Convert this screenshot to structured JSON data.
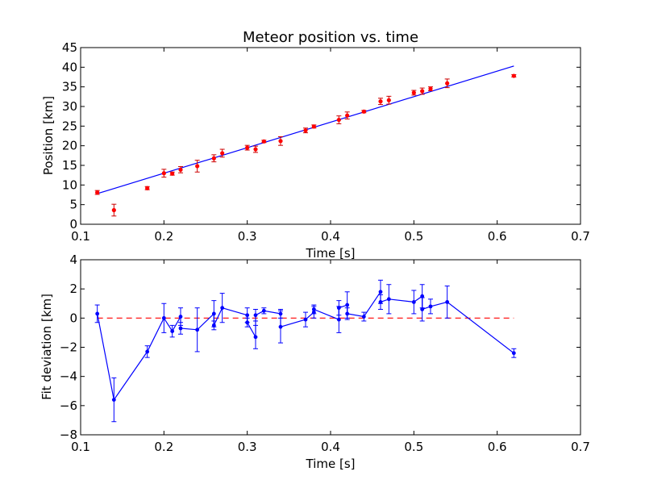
{
  "chart_data": [
    {
      "type": "scatter",
      "title": "Meteor position vs. time",
      "xlabel": "Time [s]",
      "ylabel": "Position [km]",
      "xlim": [
        0.1,
        0.7
      ],
      "ylim": [
        0,
        45
      ],
      "xticks": [
        "0.1",
        "0.2",
        "0.3",
        "0.4",
        "0.5",
        "0.6",
        "0.7"
      ],
      "yticks": [
        "0",
        "5",
        "10",
        "15",
        "20",
        "25",
        "30",
        "35",
        "40",
        "45"
      ],
      "grid": false,
      "colors": {
        "points": "#ff0000",
        "errorbars": "#cc0000",
        "fit": "#0000ff"
      },
      "series": [
        {
          "kind": "points_with_errorbars",
          "x": [
            0.12,
            0.14,
            0.18,
            0.2,
            0.21,
            0.22,
            0.24,
            0.26,
            0.27,
            0.3,
            0.31,
            0.32,
            0.34,
            0.37,
            0.38,
            0.41,
            0.42,
            0.44,
            0.46,
            0.47,
            0.5,
            0.51,
            0.52,
            0.54,
            0.62
          ],
          "y": [
            8.1,
            3.6,
            9.2,
            13.0,
            12.9,
            13.9,
            14.8,
            16.8,
            18.1,
            19.5,
            19.1,
            21.1,
            21.2,
            23.9,
            24.9,
            26.6,
            27.7,
            28.7,
            31.3,
            31.6,
            33.5,
            33.9,
            34.5,
            35.9,
            37.8
          ],
          "err": [
            0.5,
            1.5,
            0.4,
            1.0,
            0.4,
            0.8,
            1.5,
            0.9,
            1.0,
            0.6,
            0.8,
            0.3,
            1.1,
            0.6,
            0.4,
            1.0,
            0.9,
            0.3,
            0.8,
            1.0,
            0.6,
            0.8,
            0.5,
            1.1,
            0.3
          ]
        },
        {
          "kind": "line",
          "x": [
            0.12,
            0.62
          ],
          "y": [
            7.8,
            40.3
          ]
        }
      ]
    },
    {
      "type": "line",
      "title": "",
      "xlabel": "Time [s]",
      "ylabel": "Fit deviation [km]",
      "xlim": [
        0.1,
        0.7
      ],
      "ylim": [
        -8,
        4
      ],
      "xticks": [
        "0.1",
        "0.2",
        "0.3",
        "0.4",
        "0.5",
        "0.6",
        "0.7"
      ],
      "yticks": [
        "−8",
        "−6",
        "−4",
        "−2",
        "0",
        "2",
        "4"
      ],
      "grid": false,
      "colors": {
        "series": "#0000ff",
        "reference": "#ff0000"
      },
      "series": [
        {
          "kind": "line_with_errorbars",
          "x": [
            0.12,
            0.14,
            0.18,
            0.2,
            0.21,
            0.22,
            0.22,
            0.24,
            0.26,
            0.26,
            0.27,
            0.3,
            0.3,
            0.31,
            0.31,
            0.32,
            0.34,
            0.34,
            0.37,
            0.38,
            0.38,
            0.41,
            0.41,
            0.42,
            0.42,
            0.44,
            0.46,
            0.46,
            0.47,
            0.5,
            0.51,
            0.51,
            0.52,
            0.54,
            0.62
          ],
          "y": [
            0.3,
            -5.6,
            -2.3,
            0.0,
            -0.9,
            0.1,
            -0.7,
            -0.8,
            0.3,
            -0.5,
            0.7,
            0.2,
            -0.3,
            -1.3,
            0.2,
            0.5,
            0.3,
            -0.6,
            -0.1,
            0.4,
            0.6,
            -0.1,
            0.7,
            0.9,
            0.3,
            0.1,
            1.8,
            1.1,
            1.3,
            1.1,
            1.5,
            0.6,
            0.8,
            1.1,
            -2.4
          ],
          "err": [
            0.6,
            1.5,
            0.4,
            1.0,
            0.4,
            0.6,
            0.4,
            1.5,
            0.9,
            0.3,
            1.0,
            0.5,
            0.3,
            0.8,
            0.4,
            0.2,
            0.3,
            1.1,
            0.5,
            0.4,
            0.3,
            0.9,
            0.5,
            0.9,
            0.4,
            0.3,
            0.8,
            0.5,
            1.0,
            0.8,
            0.8,
            0.8,
            0.5,
            1.1,
            0.3
          ]
        },
        {
          "kind": "dashed_reference",
          "x": [
            0.12,
            0.62
          ],
          "y": [
            0,
            0
          ]
        }
      ]
    }
  ]
}
